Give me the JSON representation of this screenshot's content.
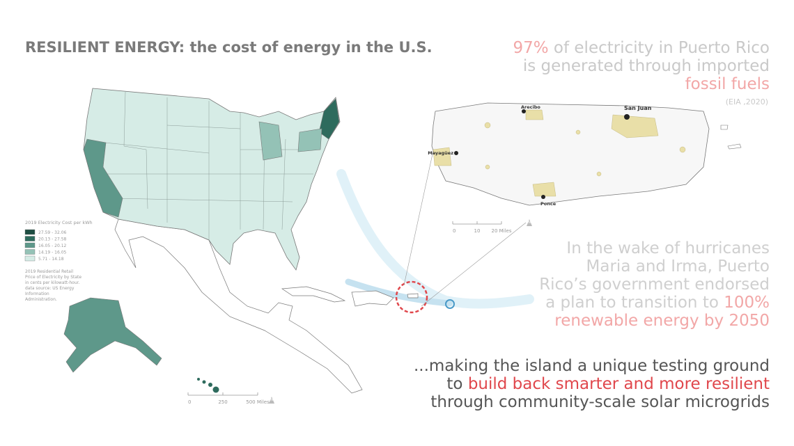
{
  "title": "RESILIENT ENERGY: the cost of energy in the U.S.",
  "stat": {
    "lines": [
      [
        {
          "text": "97%",
          "color": "#f2a7a7"
        },
        {
          "text": " of electricity in Puerto Rico",
          "color": "#c9c9c9"
        }
      ],
      [
        {
          "text": "is generated through imported",
          "color": "#c9c9c9"
        }
      ],
      [
        {
          "text": "fossil fuels",
          "color": "#f2a7a7"
        }
      ]
    ],
    "source": "(EIA ,2020)"
  },
  "wake": {
    "lines": [
      [
        {
          "text": "In the wake of hurricanes",
          "color": "#cfcfcf"
        }
      ],
      [
        {
          "text": "Maria and Irma, Puerto",
          "color": "#cfcfcf"
        }
      ],
      [
        {
          "text": "Rico’s government endorsed",
          "color": "#cfcfcf"
        }
      ],
      [
        {
          "text": "a plan to transition to ",
          "color": "#cfcfcf"
        },
        {
          "text": "100%",
          "color": "#f2a7a7"
        }
      ],
      [
        {
          "text": "renewable energy by 2050",
          "color": "#f2a7a7"
        }
      ]
    ]
  },
  "conclusion": {
    "lines": [
      [
        {
          "text": "...making the island a unique testing ground",
          "color": "#555555"
        }
      ],
      [
        {
          "text": "to ",
          "color": "#555555"
        },
        {
          "text": "build back smarter and more resilient",
          "color": "#e0474c"
        }
      ],
      [
        {
          "text": "through community-scale solar microgrids",
          "color": "#555555"
        }
      ]
    ]
  },
  "legend": {
    "title": "2019 Electricity Cost per kWh",
    "bins": [
      {
        "label": "27.59 - 32.06",
        "color": "#1e4d42"
      },
      {
        "label": "20.13 - 27.58",
        "color": "#2e6b5d"
      },
      {
        "label": "16.05 - 20.12",
        "color": "#5e988a"
      },
      {
        "label": "14.19 - 16.05",
        "color": "#94c2b6"
      },
      {
        "label": "5.71 - 14.18",
        "color": "#d6ece6"
      }
    ],
    "note": [
      "2019 Residential Retail",
      "Price of Electricity by State",
      "in cents per kilowatt-hour.",
      "data source: US Energy",
      "Information",
      "Administration."
    ]
  },
  "us_scale": [
    "0",
    "250",
    "500 Miles"
  ],
  "pr_scale": [
    "0",
    "10",
    "20 Miles"
  ],
  "north": "N",
  "cities": [
    "Arecibo",
    "San Juan",
    "Mayagüez",
    "Ponce"
  ]
}
